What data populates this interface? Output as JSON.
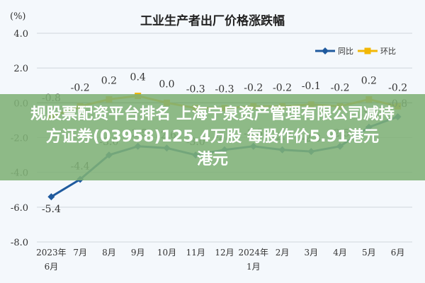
{
  "chart_data": {
    "type": "line",
    "title": "工业生产者出厂价格涨跌幅",
    "ylabel": "(%)",
    "ylim": [
      -8.0,
      4.0
    ],
    "yticks": [
      "4.0",
      "2.0",
      "0.0",
      "-2.0",
      "-4.0",
      "-6.0",
      "-8.0"
    ],
    "ytick_values": [
      4,
      2,
      0,
      -2,
      -4,
      -6,
      -8
    ],
    "categories": [
      [
        "2023年",
        "6月"
      ],
      [
        "7月"
      ],
      [
        "8月"
      ],
      [
        "9月"
      ],
      [
        "10月"
      ],
      [
        "11月"
      ],
      [
        "12月"
      ],
      [
        "2024年",
        "1月"
      ],
      [
        "2月"
      ],
      [
        "3月"
      ],
      [
        "4月"
      ],
      [
        "5月"
      ],
      [
        "6月"
      ]
    ],
    "legend_position": "top-right",
    "series": [
      {
        "name": "同比",
        "color": "#1f5a9e",
        "values": [
          -5.4,
          -4.4,
          -3.0,
          -2.5,
          -2.6,
          -3.0,
          -2.7,
          -2.5,
          -2.7,
          -2.8,
          -2.5,
          -1.4,
          -0.8
        ],
        "labels": [
          "-5.4",
          "-4.4",
          "-3.0",
          "-2.5",
          "-2.6",
          "-3.0",
          "-2.7",
          "-2.5",
          "-2.7",
          "-2.8",
          "-2.5",
          "-1.4",
          "-0.8"
        ]
      },
      {
        "name": "环比",
        "color": "#f2b705",
        "values": [
          -0.8,
          -0.2,
          0.2,
          0.4,
          0.0,
          -0.3,
          -0.3,
          -0.2,
          -0.2,
          -0.1,
          -0.2,
          0.2,
          -0.2
        ],
        "labels": [
          "-0.8",
          "-0.2",
          "0.2",
          "0.4",
          "0.0",
          "-0.3",
          "-0.3",
          "-0.2",
          "-0.2",
          "-0.1",
          "-0.2",
          "0.2",
          "-0.2"
        ]
      }
    ],
    "grid": "horizontal",
    "grid_color": "#cfd6dc",
    "zero_line_color": "#888888",
    "axis_text_color": "#333333"
  },
  "overlay": {
    "line1": "规股票配资平台排名 上海宁泉资产管理有限公司减持",
    "line2": "方证券(03958)125.4万股 每股作价5.91港元",
    "line3": "港元"
  }
}
